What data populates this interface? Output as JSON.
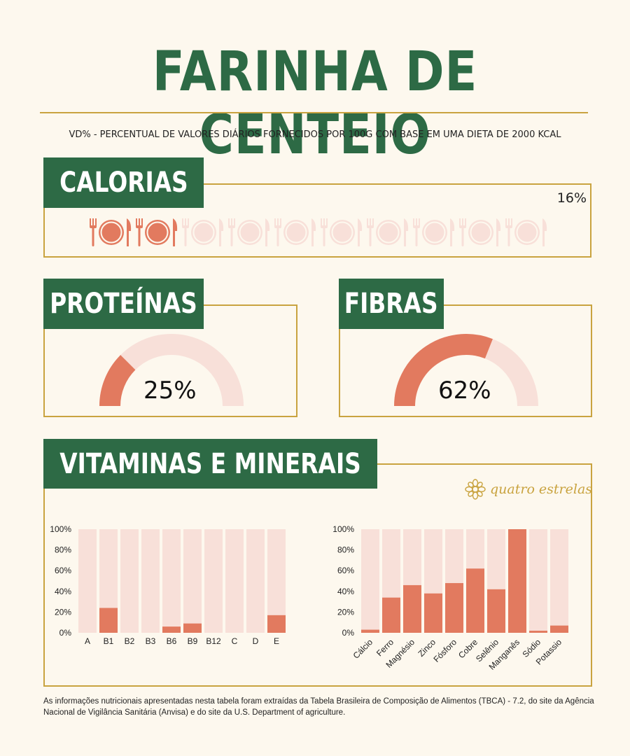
{
  "title": "FARINHA DE CENTEIO",
  "subtitle": "VD% - PERCENTUAL DE VALORES DIÁRIOS FORNECIDOS POR 100G COM BASE EM UMA DIETA DE 2000 KCAL",
  "calories": {
    "label": "CALORIAS",
    "pct_text": "16%",
    "value": 16,
    "icon_total": 10,
    "icon_filled": 2,
    "icon_name": "plate-cutlery-icon"
  },
  "proteins": {
    "label": "PROTEÍNAS",
    "pct_text": "25%",
    "value": 25
  },
  "fibers": {
    "label": "FIBRAS",
    "pct_text": "62%",
    "value": 62
  },
  "vitamins_minerals": {
    "label": "VITAMINAS E MINERAIS"
  },
  "logo": {
    "text": "quatro estrelas",
    "icon": "flower-logo-icon"
  },
  "footnote": "As informações nutricionais apresentadas nesta tabela foram extraídas da Tabela Brasileira de Composição de Alimentos (TBCA) - 7.2, do site da Agência Nacional de Vigilância Sanitária (Anvisa) e do site da U.S. Department of agriculture.",
  "colors": {
    "green": "#2d6a45",
    "gold": "#c9a33f",
    "coral": "#e27a5f",
    "pale": "#f8e0d9",
    "background": "#fdf8ee"
  },
  "chart_data": [
    {
      "type": "bar",
      "title": "Vitaminas",
      "categories": [
        "A",
        "B1",
        "B2",
        "B3",
        "B6",
        "B9",
        "B12",
        "C",
        "D",
        "E"
      ],
      "values": [
        0,
        24,
        0,
        0,
        6,
        9,
        0,
        0,
        0,
        17
      ],
      "ylim": [
        0,
        100
      ],
      "yticks": [
        "0%",
        "20%",
        "40%",
        "60%",
        "80%",
        "100%"
      ],
      "xlabel": "",
      "ylabel": ""
    },
    {
      "type": "bar",
      "title": "Minerais",
      "categories": [
        "Cálcio",
        "Ferro",
        "Magnésio",
        "Zinco",
        "Fósforo",
        "Cobre",
        "Selênio",
        "Manganês",
        "Sódio",
        "Potassio"
      ],
      "values": [
        3,
        34,
        46,
        38,
        48,
        62,
        42,
        100,
        2,
        7
      ],
      "ylim": [
        0,
        100
      ],
      "yticks": [
        "0%",
        "20%",
        "40%",
        "60%",
        "80%",
        "100%"
      ],
      "xlabel": "",
      "ylabel": ""
    }
  ]
}
